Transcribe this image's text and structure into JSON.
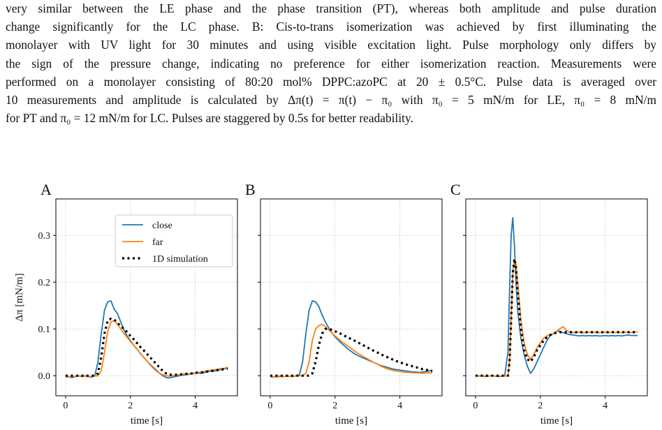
{
  "paragraph": {
    "lines": [
      "very similar between the LE phase and the phase transition (PT), whereas both amplitude and pulse duration",
      "change significantly for the LC phase. B: Cis-to-trans isomerization was achieved by first illuminating the",
      "monolayer with UV light for 30 minutes and using visible excitation light. Pulse morphology only differs by",
      "the sign of the pressure change, indicating no preference for either isomerization reaction. Measurements were",
      "performed on a monolayer consisting of 80:20 mol% DPPC:azoPC at 20 ± 0.5°C. Pulse data is averaged over",
      "10 measurements and amplitude is calculated by Δπ(t) = π(t) − π₀ with π₀ = 5 mN/m for LE, π₀ = 8 mN/m",
      "for PT and π₀ = 12 mN/m for LC. Pulses are staggered by 0.5s for better readability."
    ]
  },
  "chart_data": [
    {
      "type": "line",
      "title": "A",
      "xlabel": "time [s]",
      "ylabel": "Δπ [mN/m]",
      "grid": true,
      "legend": "upper right",
      "xlim": [
        -0.3,
        5.3
      ],
      "ylim": [
        -0.043,
        0.378
      ],
      "xticks": [
        0,
        2,
        4
      ],
      "yticks": [
        {
          "value": 0,
          "label": "0.0"
        },
        0.1,
        0.2,
        0.3
      ],
      "x": [
        0,
        0.1,
        0.2,
        0.3,
        0.4,
        0.5,
        0.6,
        0.7,
        0.8,
        0.9,
        1.0,
        1.1,
        1.2,
        1.3,
        1.4,
        1.5,
        1.6,
        1.7,
        1.8,
        1.9,
        2.0,
        2.1,
        2.2,
        2.3,
        2.4,
        2.5,
        2.6,
        2.7,
        2.8,
        2.9,
        3.0,
        3.1,
        3.2,
        3.3,
        3.4,
        3.5,
        3.6,
        3.7,
        3.8,
        3.9,
        4.0,
        4.1,
        4.2,
        4.3,
        4.4,
        4.5,
        4.6,
        4.7,
        4.8,
        4.9,
        5.0
      ],
      "series": [
        {
          "name": "close",
          "color": "#1f77b4",
          "linestyle": "solid",
          "values": [
            -0.003,
            -0.002,
            -0.004,
            -0.002,
            0,
            -0.002,
            0,
            -0.002,
            -0.003,
            0,
            0.03,
            0.09,
            0.14,
            0.158,
            0.16,
            0.142,
            0.133,
            0.115,
            0.098,
            0.085,
            0.075,
            0.065,
            0.057,
            0.048,
            0.04,
            0.032,
            0.025,
            0.018,
            0.012,
            0.005,
            0,
            -0.004,
            -0.005,
            -0.003,
            -0.002,
            0,
            0.001,
            0.002,
            0.003,
            0.004,
            0.005,
            0.006,
            0.005,
            0.007,
            0.009,
            0.01,
            0.01,
            0.012,
            0.013,
            0.015,
            0.016
          ]
        },
        {
          "name": "far",
          "color": "#ff7f0e",
          "linestyle": "solid",
          "values": [
            -0.002,
            -0.003,
            -0.001,
            -0.002,
            -0.001,
            -0.002,
            -0.001,
            -0.002,
            -0.001,
            -0.001,
            0,
            0.01,
            0.05,
            0.095,
            0.115,
            0.118,
            0.11,
            0.1,
            0.09,
            0.082,
            0.073,
            0.065,
            0.057,
            0.048,
            0.04,
            0.032,
            0.024,
            0.016,
            0.01,
            0.005,
            0.002,
            0,
            -0.001,
            0,
            0.001,
            0.002,
            0.003,
            0.004,
            0.004,
            0.005,
            0.006,
            0.007,
            0.008,
            0.01,
            0.011,
            0.012,
            0.013,
            0.014,
            0.015,
            0.016,
            0.018
          ]
        },
        {
          "name": "1D simulation",
          "color": "#000000",
          "linestyle": "dotted",
          "values": [
            0,
            0,
            0,
            0,
            0,
            0,
            0,
            0,
            0,
            0,
            0.005,
            0.04,
            0.09,
            0.118,
            0.122,
            0.12,
            0.113,
            0.106,
            0.1,
            0.093,
            0.085,
            0.078,
            0.07,
            0.062,
            0.055,
            0.047,
            0.04,
            0.032,
            0.025,
            0.017,
            0.01,
            0.005,
            0.002,
            0.002,
            0.002,
            0.003,
            0.003,
            0.004,
            0.004,
            0.005,
            0.006,
            0.007,
            0.007,
            0.008,
            0.009,
            0.01,
            0.011,
            0.012,
            0.013,
            0.014,
            0.015
          ]
        }
      ]
    },
    {
      "type": "line",
      "title": "B",
      "xlabel": "time [s]",
      "grid": true,
      "ytick_labels": false,
      "xlim": [
        -0.3,
        5.3
      ],
      "ylim": [
        -0.043,
        0.378
      ],
      "xticks": [
        0,
        2,
        4
      ],
      "yticks": [
        0,
        0.1,
        0.2,
        0.3
      ],
      "x": [
        0,
        0.1,
        0.2,
        0.3,
        0.4,
        0.5,
        0.6,
        0.7,
        0.8,
        0.9,
        1.0,
        1.1,
        1.2,
        1.3,
        1.4,
        1.5,
        1.6,
        1.7,
        1.8,
        1.9,
        2.0,
        2.1,
        2.2,
        2.3,
        2.4,
        2.5,
        2.6,
        2.7,
        2.8,
        2.9,
        3.0,
        3.1,
        3.2,
        3.3,
        3.4,
        3.5,
        3.6,
        3.7,
        3.8,
        3.9,
        4.0,
        4.1,
        4.2,
        4.3,
        4.4,
        4.5,
        4.6,
        4.7,
        4.8,
        4.9,
        5.0
      ],
      "series": [
        {
          "name": "close",
          "color": "#1f77b4",
          "linestyle": "solid",
          "values": [
            -0.002,
            -0.003,
            -0.002,
            -0.001,
            -0.002,
            -0.001,
            -0.001,
            -0.002,
            0,
            0.002,
            0.03,
            0.09,
            0.14,
            0.16,
            0.158,
            0.148,
            0.13,
            0.115,
            0.103,
            0.092,
            0.083,
            0.076,
            0.069,
            0.063,
            0.057,
            0.052,
            0.047,
            0.043,
            0.04,
            0.037,
            0.034,
            0.031,
            0.028,
            0.025,
            0.022,
            0.02,
            0.018,
            0.016,
            0.014,
            0.013,
            0.012,
            0.011,
            0.01,
            0.009,
            0.008,
            0.008,
            0.007,
            0.008,
            0.009,
            0.01,
            0.012
          ]
        },
        {
          "name": "far",
          "color": "#ff7f0e",
          "linestyle": "solid",
          "values": [
            -0.003,
            -0.002,
            -0.003,
            -0.002,
            -0.002,
            -0.001,
            -0.002,
            -0.001,
            -0.001,
            0,
            0,
            0.005,
            0.03,
            0.075,
            0.1,
            0.107,
            0.11,
            0.105,
            0.098,
            0.092,
            0.085,
            0.079,
            0.073,
            0.068,
            0.063,
            0.058,
            0.053,
            0.048,
            0.044,
            0.04,
            0.036,
            0.032,
            0.028,
            0.025,
            0.021,
            0.018,
            0.015,
            0.013,
            0.011,
            0.01,
            0.009,
            0.008,
            0.007,
            0.007,
            0.006,
            0.006,
            0.006,
            0.005,
            0.006,
            0.006,
            0.006
          ]
        },
        {
          "name": "1D simulation",
          "color": "#000000",
          "linestyle": "dotted",
          "values": [
            0,
            0,
            0,
            0,
            0,
            0,
            0,
            0,
            0,
            0,
            0,
            0,
            0,
            0.005,
            0.03,
            0.065,
            0.09,
            0.1,
            0.1,
            0.098,
            0.095,
            0.092,
            0.089,
            0.085,
            0.082,
            0.078,
            0.075,
            0.071,
            0.068,
            0.064,
            0.06,
            0.057,
            0.053,
            0.05,
            0.046,
            0.043,
            0.04,
            0.037,
            0.034,
            0.031,
            0.029,
            0.026,
            0.024,
            0.022,
            0.02,
            0.018,
            0.016,
            0.014,
            0.013,
            0.011,
            0.01
          ]
        }
      ]
    },
    {
      "type": "line",
      "title": "C",
      "xlabel": "time [s]",
      "grid": true,
      "ytick_labels": false,
      "xlim": [
        -0.3,
        5.3
      ],
      "ylim": [
        -0.043,
        0.378
      ],
      "xticks": [
        0,
        2,
        4
      ],
      "yticks": [
        0,
        0.1,
        0.2,
        0.3
      ],
      "x": [
        0,
        0.1,
        0.2,
        0.3,
        0.4,
        0.5,
        0.6,
        0.7,
        0.8,
        0.9,
        1.0,
        1.05,
        1.1,
        1.15,
        1.2,
        1.25,
        1.3,
        1.4,
        1.5,
        1.6,
        1.7,
        1.8,
        1.9,
        2.0,
        2.1,
        2.2,
        2.3,
        2.4,
        2.5,
        2.6,
        2.7,
        2.8,
        2.9,
        3.0,
        3.1,
        3.2,
        3.3,
        3.4,
        3.5,
        3.6,
        3.7,
        3.8,
        3.9,
        4.0,
        4.1,
        4.2,
        4.3,
        4.4,
        4.5,
        4.6,
        4.7,
        4.8,
        4.9,
        5.0
      ],
      "series": [
        {
          "name": "close",
          "color": "#1f77b4",
          "linestyle": "solid",
          "values": [
            0,
            -0.001,
            0,
            -0.002,
            -0.001,
            0,
            -0.001,
            -0.002,
            -0.001,
            0,
            0.05,
            0.18,
            0.3,
            0.338,
            0.28,
            0.2,
            0.14,
            0.08,
            0.045,
            0.02,
            0.005,
            0.015,
            0.03,
            0.045,
            0.06,
            0.075,
            0.085,
            0.09,
            0.095,
            0.095,
            0.092,
            0.09,
            0.088,
            0.087,
            0.086,
            0.085,
            0.086,
            0.085,
            0.086,
            0.085,
            0.086,
            0.085,
            0.085,
            0.086,
            0.085,
            0.086,
            0.085,
            0.086,
            0.085,
            0.086,
            0.087,
            0.086,
            0.086,
            0.086
          ]
        },
        {
          "name": "far",
          "color": "#ff7f0e",
          "linestyle": "solid",
          "values": [
            0,
            0,
            -0.001,
            0,
            -0.001,
            0,
            -0.001,
            0,
            -0.001,
            -0.001,
            0,
            0.03,
            0.12,
            0.22,
            0.25,
            0.24,
            0.2,
            0.12,
            0.07,
            0.045,
            0.035,
            0.045,
            0.06,
            0.07,
            0.08,
            0.085,
            0.088,
            0.09,
            0.095,
            0.1,
            0.105,
            0.097,
            0.093,
            0.092,
            0.092,
            0.093,
            0.092,
            0.092,
            0.093,
            0.092,
            0.093,
            0.092,
            0.092,
            0.093,
            0.092,
            0.093,
            0.092,
            0.093,
            0.092,
            0.093,
            0.093,
            0.092,
            0.094,
            0.093
          ]
        },
        {
          "name": "1D simulation",
          "color": "#000000",
          "linestyle": "dotted",
          "values": [
            0,
            0,
            0,
            0,
            0,
            0,
            0,
            0,
            0,
            0,
            0,
            0.03,
            0.12,
            0.22,
            0.25,
            0.23,
            0.18,
            0.1,
            0.055,
            0.035,
            0.03,
            0.04,
            0.055,
            0.065,
            0.075,
            0.082,
            0.087,
            0.09,
            0.092,
            0.093,
            0.093,
            0.093,
            0.093,
            0.093,
            0.093,
            0.093,
            0.093,
            0.093,
            0.093,
            0.093,
            0.093,
            0.093,
            0.093,
            0.093,
            0.093,
            0.093,
            0.093,
            0.093,
            0.093,
            0.093,
            0.093,
            0.093,
            0.093,
            0.093
          ]
        }
      ]
    }
  ]
}
